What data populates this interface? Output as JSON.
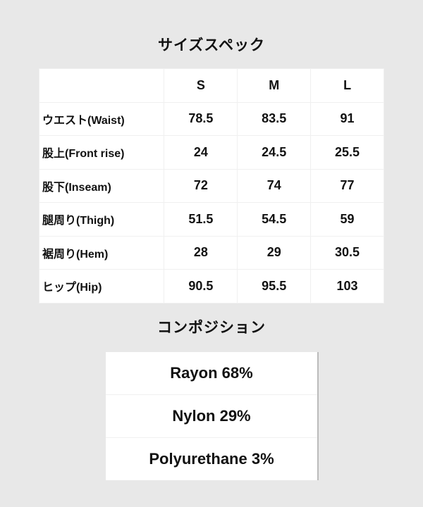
{
  "size_spec": {
    "title": "サイズスペック",
    "sizes": [
      "S",
      "M",
      "L"
    ],
    "rows": [
      {
        "label": "ウエスト(Waist)",
        "values": [
          "78.5",
          "83.5",
          "91"
        ]
      },
      {
        "label": "股上(Front rise)",
        "values": [
          "24",
          "24.5",
          "25.5"
        ]
      },
      {
        "label": "股下(Inseam)",
        "values": [
          "72",
          "74",
          "77"
        ]
      },
      {
        "label": "腿周り(Thigh)",
        "values": [
          "51.5",
          "54.5",
          "59"
        ]
      },
      {
        "label": "裾周り(Hem)",
        "values": [
          "28",
          "29",
          "30.5"
        ]
      },
      {
        "label": "ヒップ(Hip)",
        "values": [
          "90.5",
          "95.5",
          "103"
        ]
      }
    ]
  },
  "composition": {
    "title": "コンポジション",
    "items": [
      "Rayon 68%",
      "Nylon 29%",
      "Polyurethane 3%"
    ]
  }
}
